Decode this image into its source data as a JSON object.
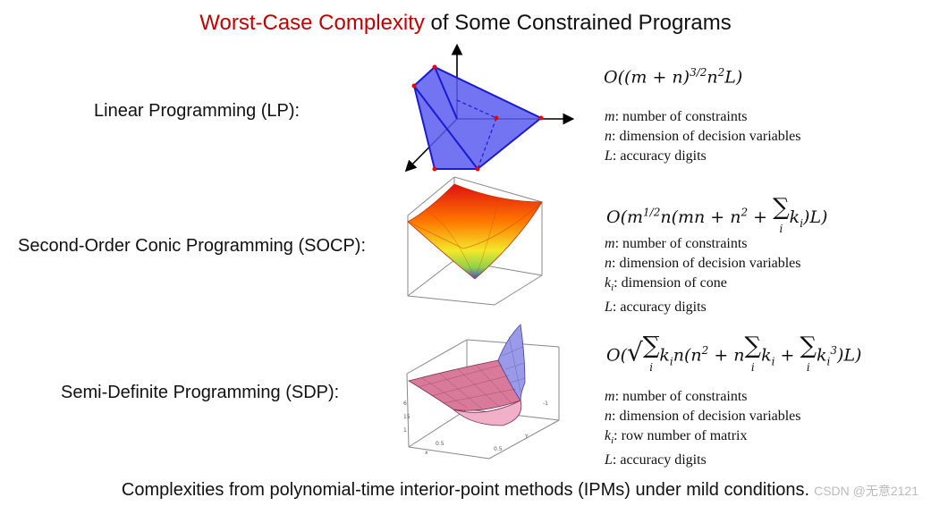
{
  "title": {
    "highlight": "Worst-Case Complexity",
    "rest": " of Some Constrained Programs"
  },
  "rows": [
    {
      "label": "Linear Programming (LP):",
      "formula": "O((m + n)^{3/2} n^2 L)",
      "defs": [
        {
          "var": "m",
          "text": ": number of constraints"
        },
        {
          "var": "n",
          "text": ": dimension of decision variables"
        },
        {
          "var": "L",
          "text": ": accuracy digits"
        }
      ]
    },
    {
      "label": "Second-Order Conic Programming (SOCP):",
      "formula": "O(m^{1/2} n(mn + n^2 + Σ_i k_i)L)",
      "defs": [
        {
          "var": "m",
          "text": ": number of constraints"
        },
        {
          "var": "n",
          "text": ": dimension of decision variables"
        },
        {
          "var": "k_i",
          "text": ": dimension of cone"
        },
        {
          "var": "L",
          "text": ": accuracy digits"
        }
      ]
    },
    {
      "label": "Semi-Definite Programming (SDP):",
      "formula": "O(√(Σ_i k_i) n(n^2 + n Σ_i k_i + Σ_i k_i^3)L)",
      "defs": [
        {
          "var": "m",
          "text": ": number of constraints"
        },
        {
          "var": "n",
          "text": ": dimension of decision variables"
        },
        {
          "var": "k_i",
          "text": ": row number of matrix"
        },
        {
          "var": "L",
          "text": ": accuracy digits"
        }
      ]
    }
  ],
  "footer": "Complexities from polynomial-time interior-point methods (IPMs) under mild conditions.",
  "watermark": "CSDN @无意2121",
  "colors": {
    "title_highlight": "#c00000",
    "polytope": "#5a5cf0"
  }
}
